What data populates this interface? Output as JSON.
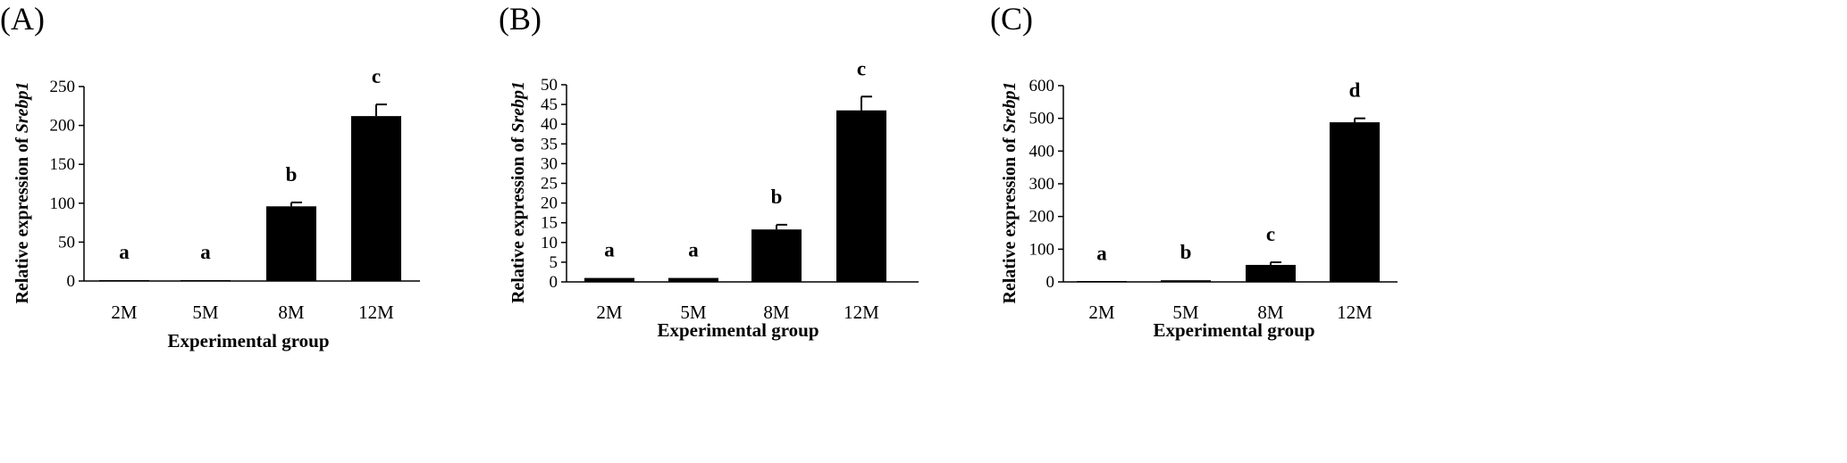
{
  "chart_data": [
    {
      "type": "bar",
      "panel_label": "(A)",
      "categories": [
        "2M",
        "5M",
        "8M",
        "12M"
      ],
      "values": [
        1,
        1,
        96,
        212
      ],
      "errors": [
        0,
        0,
        5,
        15
      ],
      "significance": [
        "a",
        "a",
        "b",
        "c"
      ],
      "xlabel": "Experimental group",
      "ylabel_prefix": "Relative expression of ",
      "ylabel_gene": "Srebp1",
      "ylim": [
        0,
        250
      ],
      "yticks": [
        "0",
        "50",
        "100",
        "150",
        "200",
        "250"
      ],
      "bar_color": "#000000"
    },
    {
      "type": "bar",
      "panel_label": "(B)",
      "categories": [
        "2M",
        "5M",
        "8M",
        "12M"
      ],
      "values": [
        1,
        1,
        13.3,
        43.5
      ],
      "errors": [
        0,
        0,
        1.2,
        3.5
      ],
      "significance": [
        "a",
        "a",
        "b",
        "c"
      ],
      "xlabel": "Experimental group",
      "ylabel_prefix": "Relative expression of ",
      "ylabel_gene": "Srebp1",
      "ylim": [
        0,
        50
      ],
      "yticks": [
        "0",
        "5",
        "10",
        "15",
        "20",
        "25",
        "30",
        "35",
        "40",
        "45",
        "50"
      ],
      "bar_color": "#000000"
    },
    {
      "type": "bar",
      "panel_label": "(C)",
      "categories": [
        "2M",
        "5M",
        "8M",
        "12M"
      ],
      "values": [
        1,
        5,
        52,
        488
      ],
      "errors": [
        0,
        0,
        8,
        12
      ],
      "significance": [
        "a",
        "b",
        "c",
        "d"
      ],
      "xlabel": "Experimental group",
      "ylabel_prefix": "Relative expression of ",
      "ylabel_gene": "Srebp1",
      "ylim": [
        0,
        600
      ],
      "yticks": [
        "0",
        "100",
        "200",
        "300",
        "400",
        "500",
        "600"
      ],
      "bar_color": "#000000"
    }
  ]
}
